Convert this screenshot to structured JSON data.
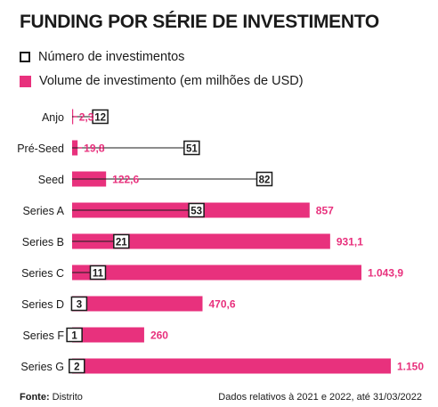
{
  "title": "FUNDING POR SÉRIE DE INVESTIMENTO",
  "legend": {
    "count_label": "Número de investimentos",
    "volume_label": "Volume de investimento (em milhões de USD)"
  },
  "colors": {
    "accent": "#e8317d",
    "ink": "#1a1a1a"
  },
  "chart_data": {
    "type": "bar",
    "orientation": "horizontal",
    "categories": [
      "Anjo",
      "Pré-Seed",
      "Seed",
      "Series A",
      "Series B",
      "Series C",
      "Series D",
      "Series F",
      "Series G"
    ],
    "series": [
      {
        "name": "Volume de investimento (em milhões de USD)",
        "values": [
          2.3,
          19.8,
          122.6,
          857,
          931.1,
          1043.9,
          470.6,
          260,
          1150
        ],
        "labels": [
          "2,3",
          "19,8",
          "122,6",
          "857",
          "931,1",
          "1.043,9",
          "470,6",
          "260",
          "1.150"
        ]
      },
      {
        "name": "Número de investimentos",
        "values": [
          12,
          51,
          82,
          53,
          21,
          11,
          3,
          1,
          2
        ],
        "labels": [
          "12",
          "51",
          "82",
          "53",
          "21",
          "11",
          "3",
          "1",
          "2"
        ]
      }
    ],
    "legend_position": "top-left",
    "grid": false
  },
  "footer": {
    "source_label": "Fonte:",
    "source_value": "Distrito",
    "note": "Dados relativos à 2021 e 2022, até 31/03/2022"
  }
}
